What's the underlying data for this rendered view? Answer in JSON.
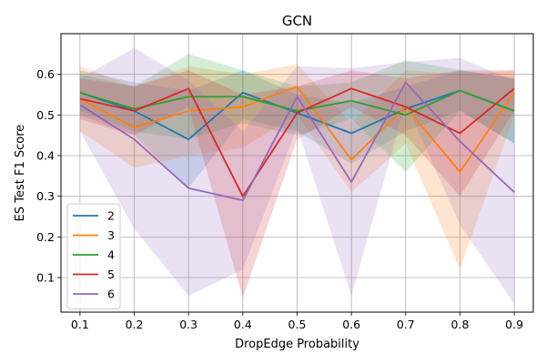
{
  "chart_data": {
    "type": "line",
    "title": "GCN",
    "xlabel": "DropEdge Probability",
    "ylabel": "ES Test F1 Score",
    "x": [
      0.1,
      0.2,
      0.3,
      0.4,
      0.5,
      0.6,
      0.7,
      0.8,
      0.9
    ],
    "x_tick_labels": [
      "0.1",
      "0.2",
      "0.3",
      "0.4",
      "0.5",
      "0.6",
      "0.7",
      "0.8",
      "0.9"
    ],
    "y_ticks": [
      0.1,
      0.2,
      0.3,
      0.4,
      0.5,
      0.6
    ],
    "y_tick_labels": [
      "0.1",
      "0.2",
      "0.3",
      "0.4",
      "0.5",
      "0.6"
    ],
    "xlim": [
      0.065,
      0.935
    ],
    "ylim": [
      0.015,
      0.7
    ],
    "grid": true,
    "legend_position": "lower-left",
    "band_opacity": 0.2,
    "series": [
      {
        "name": "2",
        "color": "#1f77b4",
        "values": [
          0.555,
          0.51,
          0.44,
          0.555,
          0.505,
          0.455,
          0.515,
          0.56,
          0.51
        ],
        "lower": [
          0.5,
          0.45,
          0.32,
          0.49,
          0.46,
          0.38,
          0.46,
          0.51,
          0.43
        ],
        "upper": [
          0.61,
          0.58,
          0.56,
          0.61,
          0.55,
          0.53,
          0.57,
          0.61,
          0.59
        ]
      },
      {
        "name": "3",
        "color": "#ff7f0e",
        "values": [
          0.54,
          0.47,
          0.51,
          0.52,
          0.57,
          0.39,
          0.52,
          0.36,
          0.555
        ],
        "lower": [
          0.46,
          0.37,
          0.4,
          0.42,
          0.5,
          0.31,
          0.43,
          0.12,
          0.5
        ],
        "upper": [
          0.62,
          0.57,
          0.62,
          0.6,
          0.625,
          0.48,
          0.61,
          0.6,
          0.61
        ]
      },
      {
        "name": "4",
        "color": "#2ca02c",
        "values": [
          0.555,
          0.515,
          0.545,
          0.545,
          0.51,
          0.535,
          0.5,
          0.56,
          0.51
        ],
        "lower": [
          0.51,
          0.46,
          0.44,
          0.48,
          0.45,
          0.49,
          0.36,
          0.51,
          0.43
        ],
        "upper": [
          0.6,
          0.57,
          0.65,
          0.61,
          0.57,
          0.58,
          0.635,
          0.61,
          0.59
        ]
      },
      {
        "name": "5",
        "color": "#d62728",
        "values": [
          0.54,
          0.51,
          0.565,
          0.3,
          0.505,
          0.565,
          0.52,
          0.455,
          0.565
        ],
        "lower": [
          0.49,
          0.45,
          0.52,
          0.05,
          0.44,
          0.52,
          0.45,
          0.3,
          0.51
        ],
        "upper": [
          0.59,
          0.57,
          0.61,
          0.55,
          0.57,
          0.61,
          0.59,
          0.61,
          0.61
        ]
      },
      {
        "name": "6",
        "color": "#9467bd",
        "values": [
          0.525,
          0.44,
          0.32,
          0.29,
          0.545,
          0.335,
          0.58,
          0.435,
          0.31
        ],
        "lower": [
          0.46,
          0.22,
          0.055,
          0.12,
          0.47,
          0.055,
          0.53,
          0.23,
          0.035
        ],
        "upper": [
          0.59,
          0.665,
          0.585,
          0.46,
          0.62,
          0.615,
          0.63,
          0.64,
          0.585
        ]
      }
    ]
  }
}
